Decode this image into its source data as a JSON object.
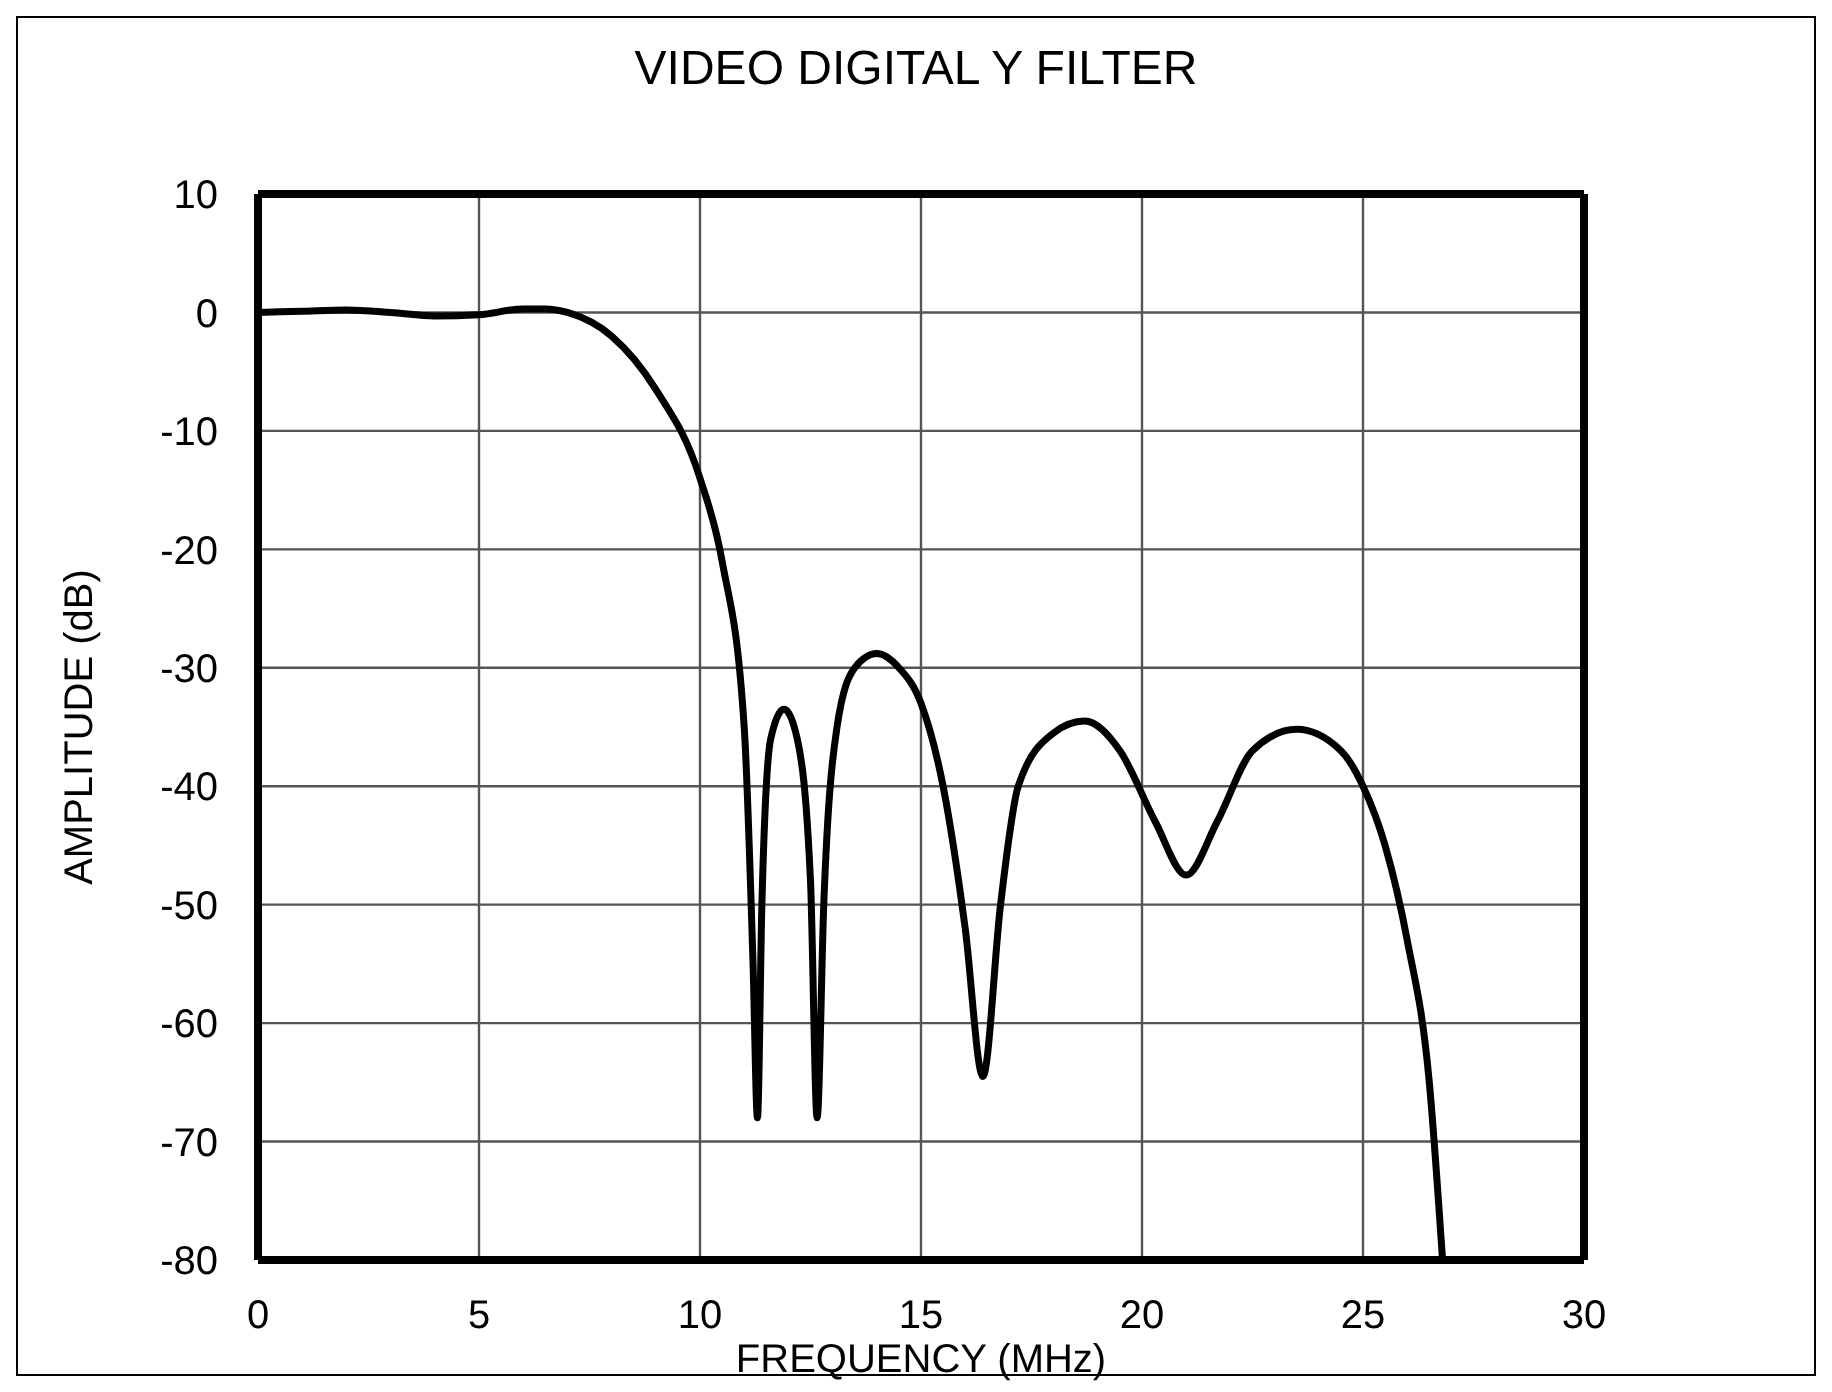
{
  "chart_data": {
    "type": "line",
    "title": "VIDEO DIGITAL Y FILTER",
    "xlabel": "FREQUENCY (MHz)",
    "ylabel": "AMPLITUDE (dB)",
    "x": [
      0,
      1,
      2,
      3,
      4,
      5,
      6,
      6.5,
      7,
      8,
      9,
      10,
      10.5,
      11,
      11.2,
      11.3,
      11.4,
      11.6,
      11.9,
      12.2,
      12.5,
      12.65,
      12.8,
      13.1,
      13.5,
      14,
      14.5,
      15,
      15.5,
      16,
      16.4,
      16.8,
      17.2,
      18,
      18.7,
      19.5,
      20.3,
      21,
      21.7,
      22.5,
      23.5,
      24.5,
      25,
      25.5,
      26,
      26.5,
      26.8
    ],
    "series": [
      {
        "color": "#000000",
        "values": [
          0,
          0.1,
          0.2,
          0,
          -0.3,
          -0.2,
          0.3,
          0.3,
          0,
          -2,
          -6.5,
          -14,
          -21,
          -35,
          -55,
          -68,
          -50,
          -36,
          -33.5,
          -36,
          -48,
          -68,
          -50,
          -35,
          -30,
          -28.8,
          -30,
          -33,
          -40,
          -52,
          -64.5,
          -50,
          -40,
          -35.5,
          -34.5,
          -37,
          -43,
          -47.5,
          -43,
          -37,
          -35.2,
          -37,
          -40,
          -45,
          -53,
          -65,
          -80
        ]
      }
    ],
    "xlim": [
      0,
      30
    ],
    "xticks": [
      0,
      5,
      10,
      15,
      20,
      25,
      30
    ],
    "ylim": [
      -80,
      10
    ],
    "yticks": [
      -80,
      -70,
      -60,
      -50,
      -40,
      -30,
      -20,
      -10,
      0,
      10
    ],
    "grid": true,
    "marker": "none",
    "line_style": "solid"
  }
}
